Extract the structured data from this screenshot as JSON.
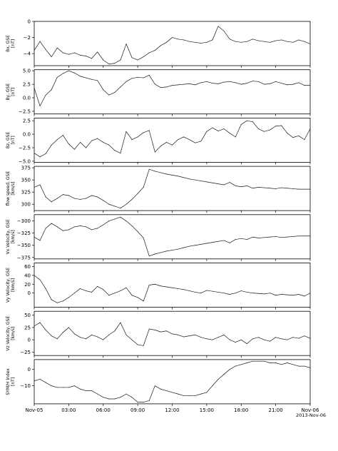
{
  "figure": {
    "date_label": "2013-Nov-06",
    "x_tick_labels": [
      "Nov-05",
      "03:00",
      "06:00",
      "09:00",
      "12:00",
      "15:00",
      "18:00",
      "21:00",
      "Nov-06"
    ]
  },
  "chart_data": [
    {
      "type": "line",
      "ylabel": [
        "Bx, GSE",
        "[nT]"
      ],
      "ylim": [
        -5.5,
        0
      ],
      "yticks": [
        -4,
        -2,
        0
      ],
      "x_hours": [
        0,
        0.5,
        1,
        1.5,
        2,
        2.5,
        3,
        3.5,
        4,
        4.5,
        5,
        5.5,
        6,
        6.5,
        7,
        7.5,
        8,
        8.5,
        9,
        9.5,
        10,
        10.5,
        11,
        11.5,
        12,
        12.5,
        13,
        13.5,
        14,
        14.5,
        15,
        15.5,
        16,
        16.5,
        17,
        17.5,
        18,
        18.5,
        19,
        19.5,
        20,
        20.5,
        21,
        21.5,
        22,
        22.5,
        23,
        23.5,
        24
      ],
      "values": [
        -3.6,
        -2.5,
        -3.5,
        -4.4,
        -3.3,
        -3.9,
        -4.1,
        -3.9,
        -4.2,
        -4.3,
        -4.6,
        -3.8,
        -4.8,
        -5.3,
        -5.2,
        -4.8,
        -2.8,
        -4.5,
        -4.8,
        -4.4,
        -3.9,
        -3.6,
        -3.0,
        -2.6,
        -2.0,
        -2.2,
        -2.3,
        -2.5,
        -2.6,
        -2.7,
        -2.6,
        -2.3,
        -0.6,
        -1.2,
        -2.2,
        -2.5,
        -2.6,
        -2.5,
        -2.2,
        -2.4,
        -2.5,
        -2.6,
        -2.4,
        -2.3,
        -2.5,
        -2.6,
        -2.3,
        -2.5,
        -2.8
      ]
    },
    {
      "type": "line",
      "ylabel": [
        "By, GSE",
        "[nT]"
      ],
      "ylim": [
        -3.0,
        5.2
      ],
      "yticks": [
        -2.5,
        0.0,
        2.5,
        5.0
      ],
      "x_hours": [
        0,
        0.5,
        1,
        1.5,
        2,
        2.5,
        3,
        3.5,
        4,
        4.5,
        5,
        5.5,
        6,
        6.5,
        7,
        7.5,
        8,
        8.5,
        9,
        9.5,
        10,
        10.5,
        11,
        11.5,
        12,
        12.5,
        13,
        13.5,
        14,
        14.5,
        15,
        15.5,
        16,
        16.5,
        17,
        17.5,
        18,
        18.5,
        19,
        19.5,
        20,
        20.5,
        21,
        21.5,
        22,
        22.5,
        23,
        23.5,
        24
      ],
      "values": [
        1.8,
        -1.5,
        0.5,
        1.5,
        3.8,
        4.5,
        5.0,
        4.6,
        4.0,
        3.7,
        3.4,
        3.2,
        1.5,
        0.5,
        1.0,
        2.0,
        3.0,
        3.6,
        3.8,
        3.7,
        4.2,
        2.5,
        1.9,
        2.0,
        2.3,
        2.4,
        2.5,
        2.6,
        2.4,
        2.8,
        3.0,
        2.7,
        2.6,
        2.9,
        3.0,
        2.8,
        2.5,
        2.7,
        3.1,
        3.0,
        2.5,
        2.6,
        3.0,
        2.7,
        2.4,
        2.5,
        2.8,
        2.3,
        2.3
      ]
    },
    {
      "type": "line",
      "ylabel": [
        "Bz, GSE",
        "[nT]"
      ],
      "ylim": [
        -5.2,
        3.0
      ],
      "yticks": [
        -5.0,
        -2.5,
        0.0,
        2.5
      ],
      "x_hours": [
        0,
        0.5,
        1,
        1.5,
        2,
        2.5,
        3,
        3.5,
        4,
        4.5,
        5,
        5.5,
        6,
        6.5,
        7,
        7.5,
        8,
        8.5,
        9,
        9.5,
        10,
        10.5,
        11,
        11.5,
        12,
        12.5,
        13,
        13.5,
        14,
        14.5,
        15,
        15.5,
        16,
        16.5,
        17,
        17.5,
        18,
        18.5,
        19,
        19.5,
        20,
        20.5,
        21,
        21.5,
        22,
        22.5,
        23,
        23.5,
        24
      ],
      "values": [
        -3.5,
        -4.2,
        -3.6,
        -2.0,
        -1.0,
        -0.2,
        -1.8,
        -2.8,
        -1.5,
        -2.5,
        -1.2,
        -0.8,
        -1.5,
        -2.0,
        -3.0,
        -3.5,
        0.5,
        -1.0,
        -0.5,
        0.3,
        0.7,
        -3.3,
        -2.2,
        -1.5,
        -2.0,
        -1.0,
        -0.5,
        -1.0,
        -1.6,
        -1.3,
        0.5,
        1.2,
        0.6,
        1.0,
        0.2,
        -0.5,
        1.8,
        2.5,
        2.3,
        1.0,
        0.5,
        0.8,
        1.5,
        1.6,
        0.2,
        -0.6,
        -0.3,
        -1.0,
        1.0
      ]
    },
    {
      "type": "line",
      "ylabel": [
        "flow speed, GSE",
        "[km/s]"
      ],
      "ylim": [
        287,
        378
      ],
      "yticks": [
        300,
        325,
        350,
        375
      ],
      "x_hours": [
        0,
        0.5,
        1,
        1.5,
        2,
        2.5,
        3,
        3.5,
        4,
        4.5,
        5,
        5.5,
        6,
        6.5,
        7,
        7.5,
        8,
        8.5,
        9,
        9.5,
        10,
        10.5,
        11,
        11.5,
        12,
        12.5,
        13,
        13.5,
        14,
        14.5,
        15,
        15.5,
        16,
        16.5,
        17,
        17.5,
        18,
        18.5,
        19,
        19.5,
        20,
        20.5,
        21,
        21.5,
        22,
        22.5,
        23,
        23.5,
        24
      ],
      "values": [
        335,
        340,
        315,
        305,
        312,
        320,
        318,
        312,
        310,
        312,
        318,
        315,
        308,
        300,
        296,
        292,
        300,
        310,
        322,
        335,
        372,
        368,
        365,
        362,
        360,
        358,
        355,
        352,
        350,
        348,
        346,
        344,
        342,
        340,
        345,
        338,
        336,
        338,
        333,
        335,
        334,
        333,
        332,
        334,
        333,
        332,
        331,
        331,
        331
      ]
    },
    {
      "type": "line",
      "ylabel": [
        "Vx Velocity, GSE",
        "[km/s]"
      ],
      "ylim": [
        -378,
        -287
      ],
      "yticks": [
        -375,
        -350,
        -325,
        -300
      ],
      "x_hours": [
        0,
        0.5,
        1,
        1.5,
        2,
        2.5,
        3,
        3.5,
        4,
        4.5,
        5,
        5.5,
        6,
        6.5,
        7,
        7.5,
        8,
        8.5,
        9,
        9.5,
        10,
        10.5,
        11,
        11.5,
        12,
        12.5,
        13,
        13.5,
        14,
        14.5,
        15,
        15.5,
        16,
        16.5,
        17,
        17.5,
        18,
        18.5,
        19,
        19.5,
        20,
        20.5,
        21,
        21.5,
        22,
        22.5,
        23,
        23.5,
        24
      ],
      "values": [
        -333,
        -340,
        -315,
        -305,
        -312,
        -320,
        -318,
        -312,
        -310,
        -312,
        -318,
        -315,
        -308,
        -300,
        -296,
        -292,
        -300,
        -310,
        -322,
        -335,
        -372,
        -368,
        -365,
        -362,
        -360,
        -358,
        -355,
        -352,
        -350,
        -348,
        -346,
        -344,
        -342,
        -340,
        -345,
        -338,
        -336,
        -338,
        -333,
        -335,
        -334,
        -333,
        -332,
        -334,
        -333,
        -332,
        -331,
        -331,
        -331
      ]
    },
    {
      "type": "line",
      "ylabel": [
        "Vy Velocity, GSE",
        "[km/s]"
      ],
      "ylim": [
        -32,
        68
      ],
      "yticks": [
        0,
        20,
        40,
        60
      ],
      "x_hours": [
        0,
        0.5,
        1,
        1.5,
        2,
        2.5,
        3,
        3.5,
        4,
        4.5,
        5,
        5.5,
        6,
        6.5,
        7,
        7.5,
        8,
        8.5,
        9,
        9.5,
        10,
        10.5,
        11,
        11.5,
        12,
        12.5,
        13,
        13.5,
        14,
        14.5,
        15,
        15.5,
        16,
        16.5,
        17,
        17.5,
        18,
        18.5,
        19,
        19.5,
        20,
        20.5,
        21,
        21.5,
        22,
        22.5,
        23,
        23.5,
        24
      ],
      "values": [
        40,
        30,
        10,
        -15,
        -22,
        -18,
        -10,
        0,
        10,
        5,
        2,
        15,
        8,
        -5,
        0,
        5,
        12,
        -5,
        -10,
        -18,
        18,
        20,
        16,
        14,
        12,
        10,
        8,
        5,
        2,
        0,
        6,
        4,
        2,
        0,
        -3,
        0,
        5,
        2,
        0,
        -1,
        -2,
        0,
        -5,
        -3,
        -4,
        -5,
        -3,
        -7,
        0
      ]
    },
    {
      "type": "line",
      "ylabel": [
        "Vz Velocity, GSE",
        "[km/s]"
      ],
      "ylim": [
        -32,
        58
      ],
      "yticks": [
        -25,
        0,
        25,
        50
      ],
      "x_hours": [
        0,
        0.5,
        1,
        1.5,
        2,
        2.5,
        3,
        3.5,
        4,
        4.5,
        5,
        5.5,
        6,
        6.5,
        7,
        7.5,
        8,
        8.5,
        9,
        9.5,
        10,
        10.5,
        11,
        11.5,
        12,
        12.5,
        13,
        13.5,
        14,
        14.5,
        15,
        15.5,
        16,
        16.5,
        17,
        17.5,
        18,
        18.5,
        19,
        19.5,
        20,
        20.5,
        21,
        21.5,
        22,
        22.5,
        23,
        23.5,
        24
      ],
      "values": [
        28,
        35,
        20,
        8,
        2,
        15,
        25,
        12,
        5,
        2,
        10,
        6,
        0,
        10,
        18,
        35,
        10,
        0,
        -10,
        -12,
        22,
        20,
        16,
        18,
        12,
        10,
        6,
        8,
        10,
        5,
        2,
        0,
        5,
        10,
        0,
        -5,
        0,
        -8,
        2,
        5,
        0,
        -3,
        5,
        2,
        0,
        5,
        3,
        8,
        3
      ]
    },
    {
      "type": "line",
      "ylabel": [
        "SYM/H index",
        "[nT]"
      ],
      "ylim": [
        -21,
        6
      ],
      "yticks": [
        -10,
        0
      ],
      "x_hours": [
        0,
        0.5,
        1,
        1.5,
        2,
        2.5,
        3,
        3.5,
        4,
        4.5,
        5,
        5.5,
        6,
        6.5,
        7,
        7.5,
        8,
        8.5,
        9,
        9.5,
        10,
        10.5,
        11,
        11.5,
        12,
        12.5,
        13,
        13.5,
        14,
        14.5,
        15,
        15.5,
        16,
        16.5,
        17,
        17.5,
        18,
        18.5,
        19,
        19.5,
        20,
        20.5,
        21,
        21.5,
        22,
        22.5,
        23,
        23.5,
        24
      ],
      "values": [
        -7,
        -6,
        -8,
        -10,
        -11,
        -11,
        -11,
        -10,
        -12,
        -13,
        -13,
        -15,
        -17,
        -18,
        -18,
        -17,
        -15,
        -17,
        -20,
        -20,
        -19,
        -10,
        -12,
        -13,
        -14,
        -15,
        -16,
        -16,
        -16,
        -15,
        -14,
        -10,
        -6,
        -3,
        0,
        2,
        3,
        4,
        5,
        5,
        5,
        4,
        4,
        3,
        4,
        3,
        2,
        2,
        1
      ]
    }
  ]
}
